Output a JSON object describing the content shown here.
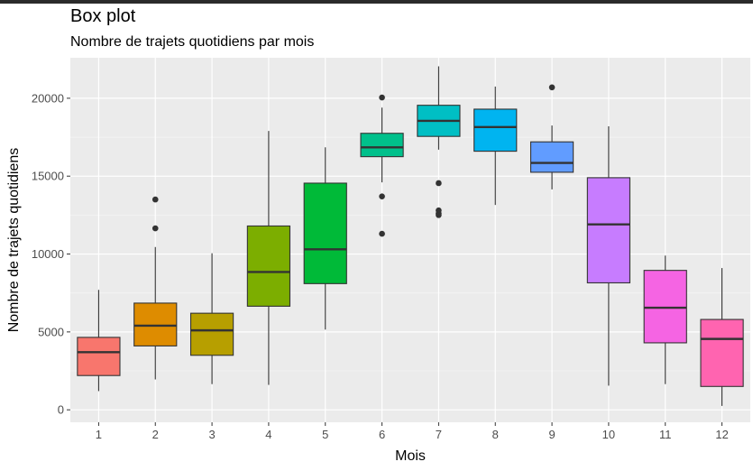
{
  "chart_data": {
    "type": "box",
    "title": "Box plot",
    "subtitle": "Nombre de trajets quotidiens par mois",
    "xlabel": "Mois",
    "ylabel": "Nombre de trajets quotidiens",
    "ylim": [
      -800,
      22600
    ],
    "yticks": [
      0,
      5000,
      10000,
      15000,
      20000
    ],
    "ytick_labels": [
      "0",
      "5000",
      "10000",
      "15000",
      "20000"
    ],
    "categories": [
      "1",
      "2",
      "3",
      "4",
      "5",
      "6",
      "7",
      "8",
      "9",
      "10",
      "11",
      "12"
    ],
    "grid": true,
    "legend": "none",
    "boxes": [
      {
        "category": "1",
        "lower_whisker": 1200,
        "q1": 2200,
        "median": 3700,
        "q3": 4650,
        "upper_whisker": 7700,
        "outliers": [],
        "color": "#F8766D"
      },
      {
        "category": "2",
        "lower_whisker": 1950,
        "q1": 4100,
        "median": 5400,
        "q3": 6850,
        "upper_whisker": 10450,
        "outliers": [
          11650,
          13500
        ],
        "color": "#DE8C00"
      },
      {
        "category": "3",
        "lower_whisker": 1650,
        "q1": 3500,
        "median": 5100,
        "q3": 6200,
        "upper_whisker": 10050,
        "outliers": [],
        "color": "#B79F00"
      },
      {
        "category": "4",
        "lower_whisker": 1600,
        "q1": 6650,
        "median": 8850,
        "q3": 11800,
        "upper_whisker": 17900,
        "outliers": [],
        "color": "#7CAE00"
      },
      {
        "category": "5",
        "lower_whisker": 5150,
        "q1": 8100,
        "median": 10300,
        "q3": 14550,
        "upper_whisker": 16850,
        "outliers": [],
        "color": "#00BA38"
      },
      {
        "category": "6",
        "lower_whisker": 14600,
        "q1": 16250,
        "median": 16850,
        "q3": 17750,
        "upper_whisker": 19400,
        "outliers": [
          20050,
          13700,
          11300
        ],
        "color": "#00C08B"
      },
      {
        "category": "7",
        "lower_whisker": 16700,
        "q1": 17550,
        "median": 18550,
        "q3": 19550,
        "upper_whisker": 22050,
        "outliers": [
          14550,
          12800,
          12600,
          12500
        ],
        "color": "#00BFC4"
      },
      {
        "category": "8",
        "lower_whisker": 13150,
        "q1": 16600,
        "median": 18150,
        "q3": 19300,
        "upper_whisker": 20750,
        "outliers": [],
        "color": "#00B4F0"
      },
      {
        "category": "9",
        "lower_whisker": 14150,
        "q1": 15250,
        "median": 15850,
        "q3": 17200,
        "upper_whisker": 18250,
        "outliers": [
          20700
        ],
        "color": "#619CFF"
      },
      {
        "category": "10",
        "lower_whisker": 1550,
        "q1": 8150,
        "median": 11900,
        "q3": 14900,
        "upper_whisker": 18200,
        "outliers": [],
        "color": "#C77CFF"
      },
      {
        "category": "11",
        "lower_whisker": 1650,
        "q1": 4300,
        "median": 6550,
        "q3": 8950,
        "upper_whisker": 9900,
        "outliers": [],
        "color": "#F564E3"
      },
      {
        "category": "12",
        "lower_whisker": 250,
        "q1": 1500,
        "median": 4550,
        "q3": 5800,
        "upper_whisker": 9100,
        "outliers": [],
        "color": "#FF64B0"
      }
    ],
    "colors": {
      "panel_bg": "#EBEBEB",
      "grid_major": "#FFFFFF",
      "outline": "#333333",
      "whisker": "#333333",
      "outlier": "#333333"
    }
  }
}
